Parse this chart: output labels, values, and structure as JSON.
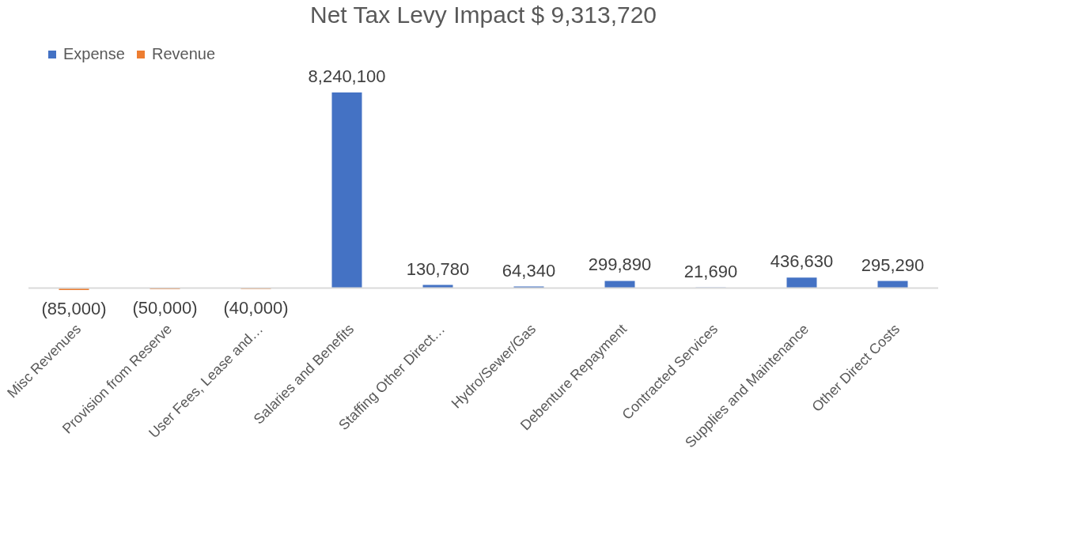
{
  "chart_data": {
    "type": "bar",
    "title": "Net Tax Levy Impact $ 9,313,720",
    "legend": "top",
    "categories": [
      "Misc Revenues",
      "Provision from Reserve",
      "User Fees, Lease and…",
      "Salaries and Benefits",
      "Staffing Other Direct…",
      "Hydro/Sewer/Gas",
      "Debenture Repayment",
      "Contracted Services",
      "Supplies and Maintenance",
      "Other Direct Costs"
    ],
    "series": [
      {
        "name": "Expense",
        "color": "#4472c4",
        "values": [
          null,
          null,
          null,
          8240100,
          130780,
          64340,
          299890,
          21690,
          436630,
          295290
        ],
        "value_labels": [
          null,
          null,
          null,
          "8,240,100",
          "130,780",
          "64,340",
          "299,890",
          "21,690",
          "436,630",
          "295,290"
        ]
      },
      {
        "name": "Revenue",
        "color": "#ed7d31",
        "values": [
          -85000,
          -50000,
          -40000,
          null,
          null,
          null,
          null,
          null,
          null,
          null
        ],
        "value_labels": [
          "(85,000)",
          "(50,000)",
          "(40,000)",
          null,
          null,
          null,
          null,
          null,
          null,
          null
        ]
      }
    ]
  }
}
